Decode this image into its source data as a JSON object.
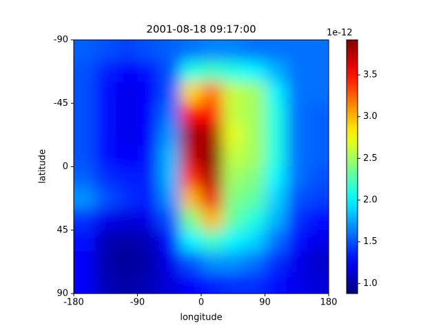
{
  "chart_data": {
    "type": "heatmap",
    "title": "2001-08-18 09:17:00",
    "x_label": "longitude",
    "y_label": "latitude",
    "x": [
      -165,
      -135,
      -105,
      -75,
      -45,
      -15,
      15,
      45,
      75,
      105,
      135,
      165
    ],
    "y": [
      -82.5,
      -67.5,
      -52.5,
      -37.5,
      -22.5,
      -7.5,
      7.5,
      22.5,
      37.5,
      52.5,
      67.5,
      82.5
    ],
    "z": [
      [
        1.55,
        1.5,
        1.45,
        1.5,
        1.55,
        1.6,
        1.65,
        1.65,
        1.6,
        1.6,
        1.6,
        1.6
      ],
      [
        1.5,
        1.35,
        1.25,
        1.3,
        1.5,
        2.1,
        2.2,
        2.1,
        2.0,
        1.8,
        1.6,
        1.6
      ],
      [
        1.5,
        1.3,
        1.2,
        1.25,
        1.5,
        2.9,
        3.2,
        2.6,
        2.5,
        2.0,
        1.6,
        1.6
      ],
      [
        1.5,
        1.3,
        1.2,
        1.25,
        1.6,
        3.5,
        3.5,
        2.6,
        2.5,
        2.1,
        1.6,
        1.55
      ],
      [
        1.5,
        1.3,
        1.2,
        1.25,
        1.7,
        3.8,
        3.8,
        2.7,
        2.5,
        2.1,
        1.6,
        1.55
      ],
      [
        1.5,
        1.3,
        1.25,
        1.3,
        1.8,
        3.7,
        3.9,
        2.6,
        2.5,
        2.1,
        1.6,
        1.55
      ],
      [
        1.55,
        1.4,
        1.35,
        1.35,
        1.8,
        3.4,
        3.8,
        2.5,
        2.4,
        2.0,
        1.6,
        1.5
      ],
      [
        1.7,
        1.5,
        1.4,
        1.35,
        1.7,
        3.0,
        3.6,
        2.4,
        2.3,
        1.9,
        1.5,
        1.45
      ],
      [
        1.4,
        1.2,
        1.15,
        1.2,
        1.5,
        2.4,
        3.0,
        2.3,
        2.1,
        1.8,
        1.4,
        1.3
      ],
      [
        1.3,
        1.05,
        1.0,
        1.05,
        1.3,
        2.0,
        2.2,
        2.0,
        1.9,
        1.6,
        1.3,
        1.2
      ],
      [
        1.25,
        1.0,
        0.95,
        1.0,
        1.2,
        1.5,
        1.7,
        1.7,
        1.6,
        1.4,
        1.2,
        1.1
      ],
      [
        1.25,
        1.05,
        1.0,
        1.05,
        1.15,
        1.25,
        1.35,
        1.4,
        1.4,
        1.3,
        1.2,
        1.15
      ]
    ],
    "colormap": "jet",
    "xlim": [
      -180,
      180
    ],
    "xticks": [
      -180,
      -90,
      0,
      90,
      180
    ],
    "ylim": [
      90,
      -90
    ],
    "yticks": [
      -90,
      -45,
      0,
      45,
      90
    ],
    "clim": [
      0.88,
      3.92
    ],
    "cticks": [
      {
        "value": 1,
        "label": "1.0"
      },
      1.5,
      {
        "value": 2,
        "label": "2.0"
      },
      2.5,
      {
        "value": 3,
        "label": "3.0"
      },
      3.5
    ],
    "c_offset_label": "1e-12"
  }
}
